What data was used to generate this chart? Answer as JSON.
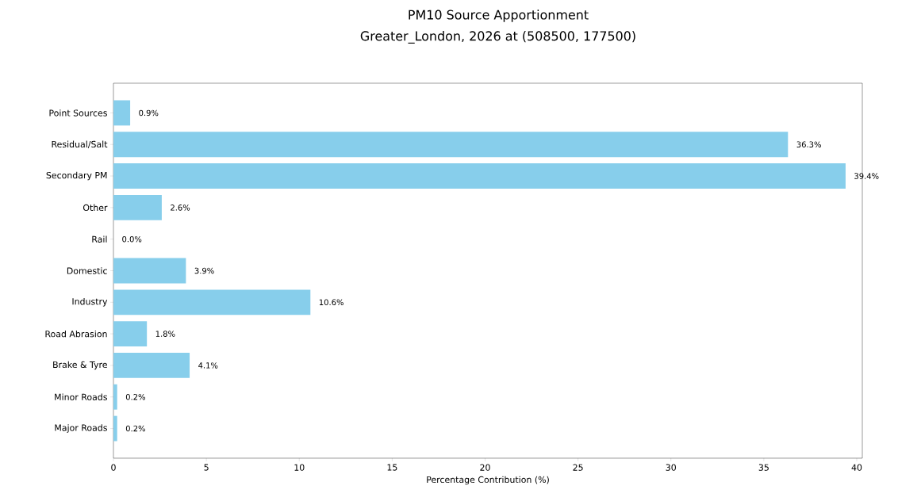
{
  "chart_data": {
    "type": "bar",
    "orientation": "horizontal",
    "title": "PM10 Source Apportionment",
    "subtitle": "Greater_London, 2026 at (508500, 177500)",
    "xlabel": "Percentage Contribution (%)",
    "categories": [
      "Point Sources",
      "Residual/Salt",
      "Secondary PM",
      "Other",
      "Rail",
      "Domestic",
      "Industry",
      "Road Abrasion",
      "Brake & Tyre",
      "Minor Roads",
      "Major Roads"
    ],
    "values": [
      0.9,
      36.3,
      39.4,
      2.6,
      0.0,
      3.9,
      10.6,
      1.8,
      4.1,
      0.2,
      0.2
    ],
    "value_labels": [
      "0.9%",
      "36.3%",
      "39.4%",
      "2.6%",
      "0.0%",
      "3.9%",
      "10.6%",
      "1.8%",
      "4.1%",
      "0.2%",
      "0.2%"
    ],
    "color": "#87ceeb",
    "xlim": [
      0,
      40.3
    ],
    "xticks": [
      0,
      5,
      10,
      15,
      20,
      25,
      30,
      35,
      40
    ]
  }
}
